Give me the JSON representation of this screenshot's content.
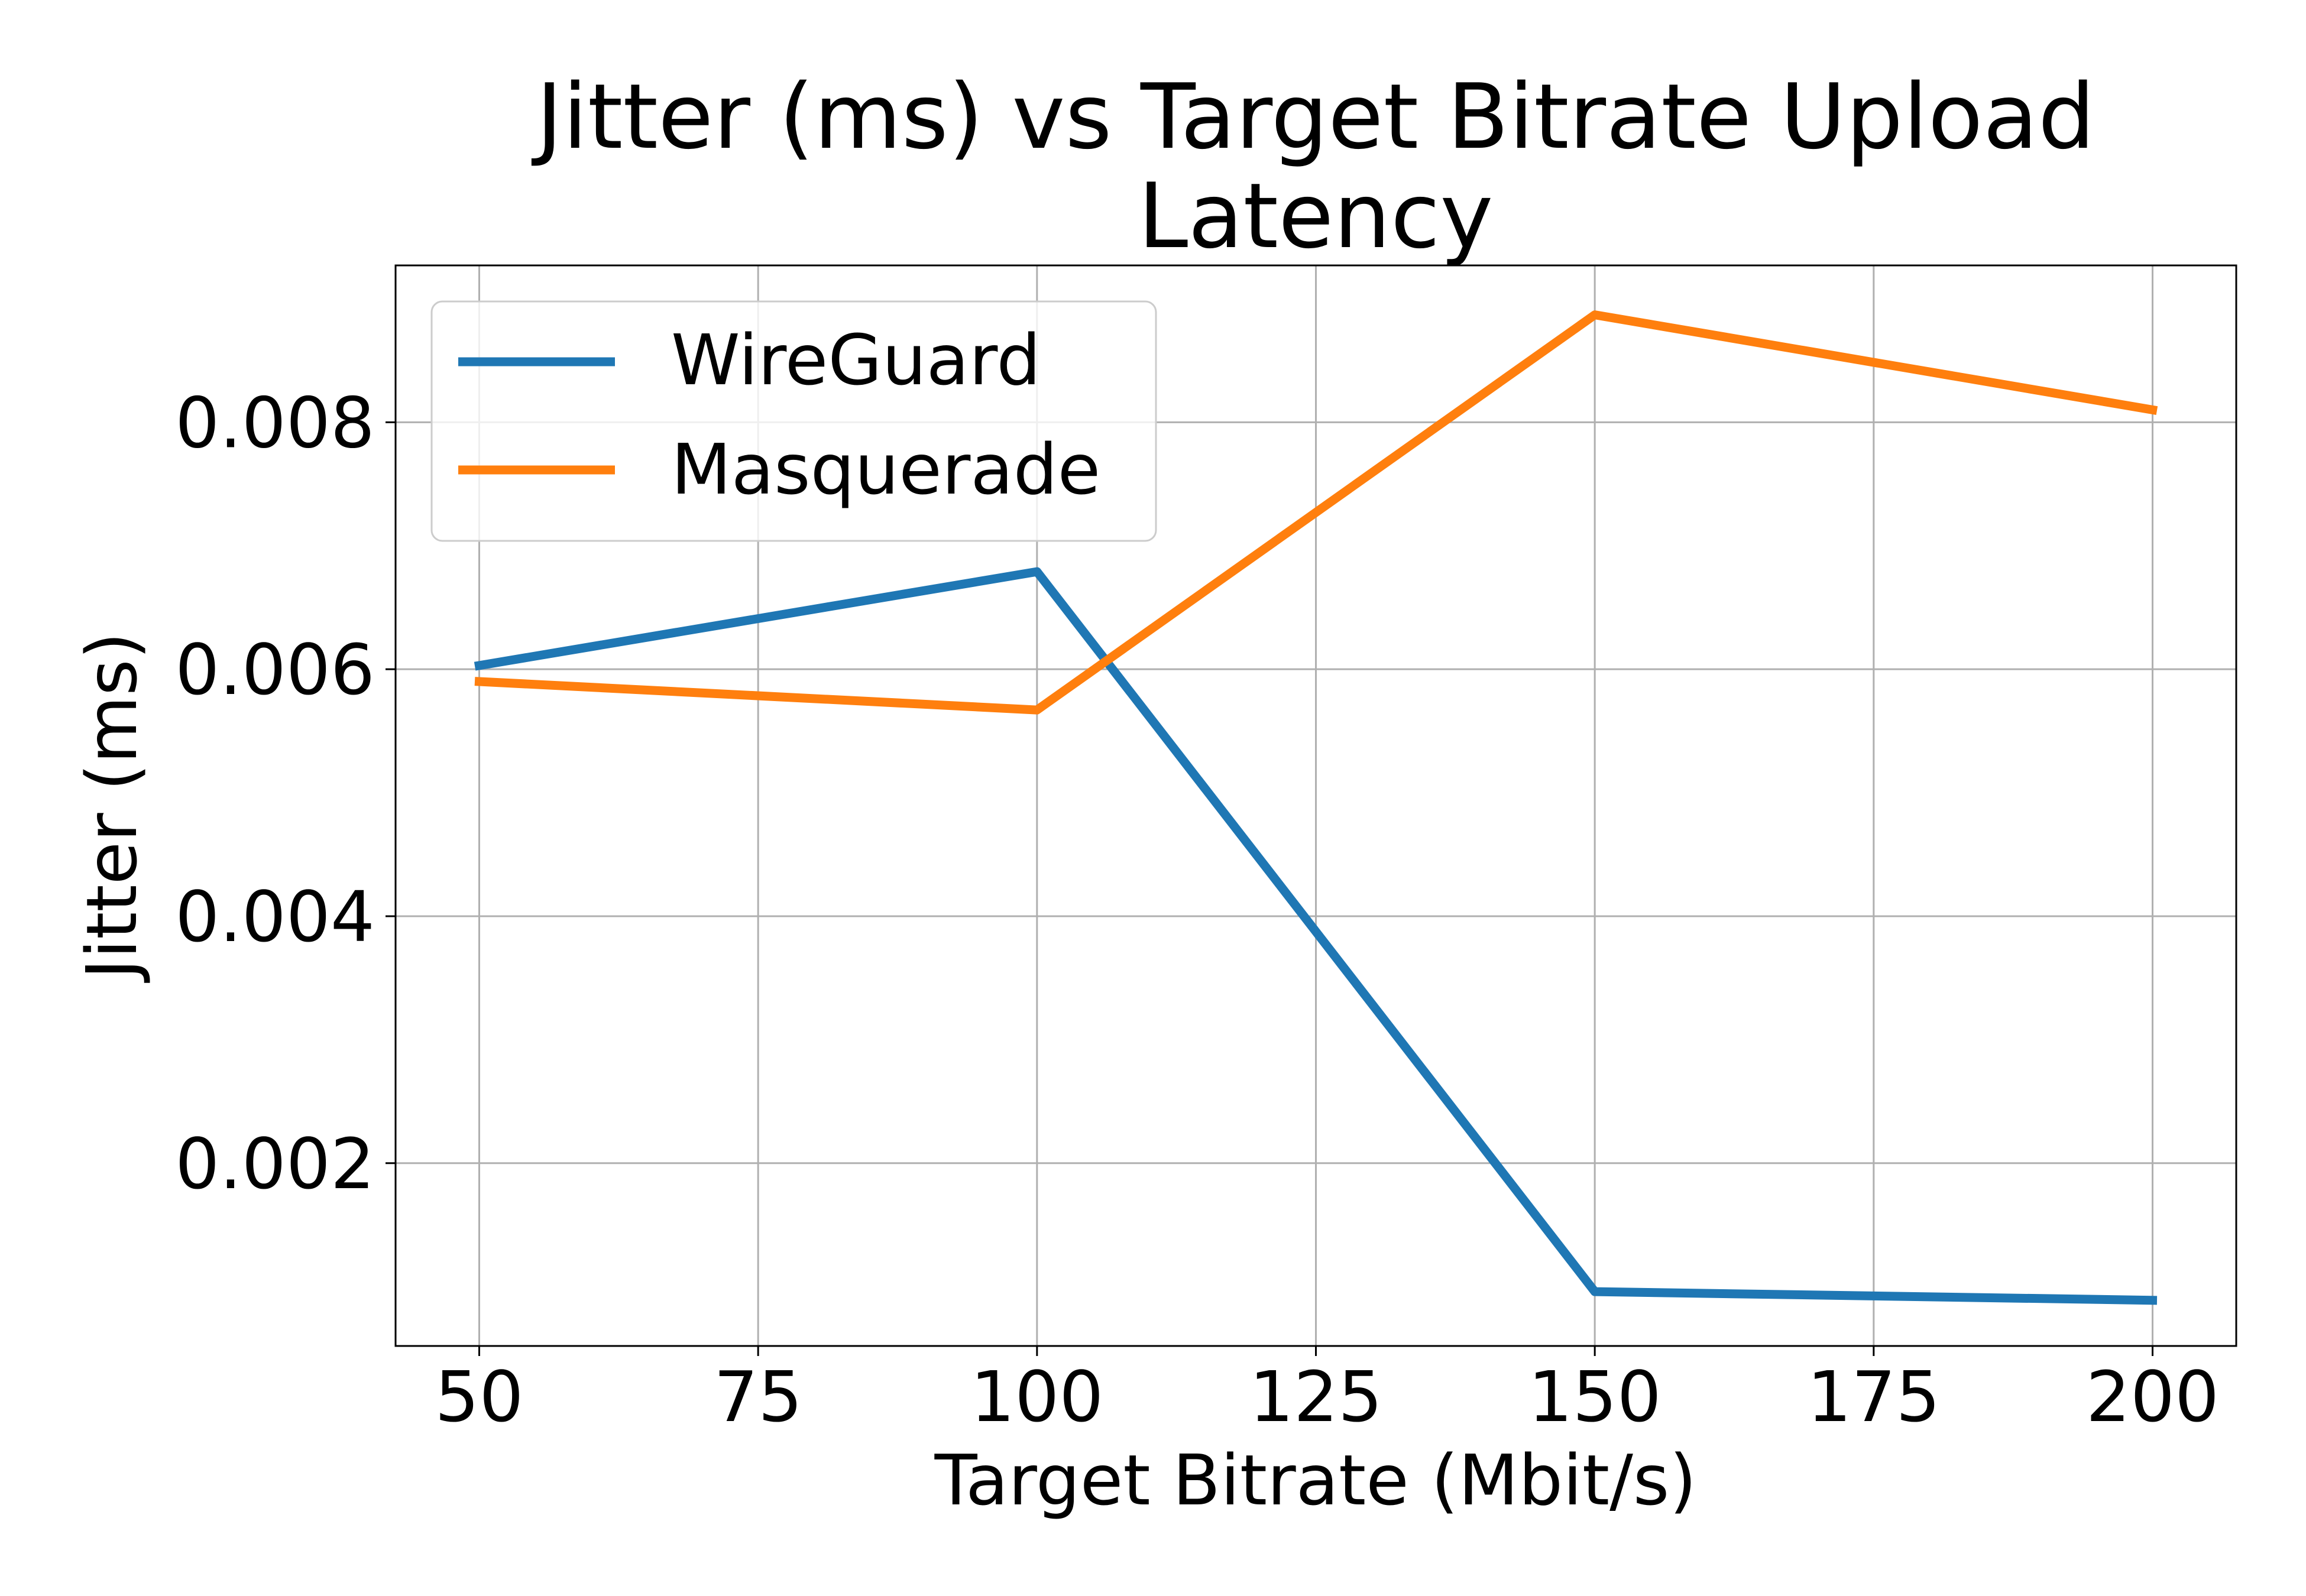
{
  "chart_data": {
    "type": "line",
    "title_lines": [
      "Jitter (ms) vs Target Bitrate Upload",
      "Latency"
    ],
    "xlabel": "Target Bitrate (Mbit/s)",
    "ylabel": "Jitter (ms)",
    "xlim": [
      42.5,
      207.5
    ],
    "ylim": [
      0.00052,
      0.00927
    ],
    "xticks": [
      50,
      75,
      100,
      125,
      150,
      175,
      200
    ],
    "xtick_labels": [
      "50",
      "75",
      "100",
      "125",
      "150",
      "175",
      "200"
    ],
    "yticks": [
      0.002,
      0.004,
      0.006,
      0.008
    ],
    "ytick_labels": [
      "0.002",
      "0.004",
      "0.006",
      "0.008"
    ],
    "grid": true,
    "legend_position": "upper-left",
    "x": [
      50,
      100,
      150,
      200
    ],
    "series": [
      {
        "name": "WireGuard",
        "color": "#1f77b4",
        "values": [
          0.00603,
          0.00679,
          0.00096,
          0.00089
        ]
      },
      {
        "name": "Masquerade",
        "color": "#ff7f0e",
        "values": [
          0.0059,
          0.00567,
          0.00887,
          0.0081
        ]
      }
    ]
  }
}
